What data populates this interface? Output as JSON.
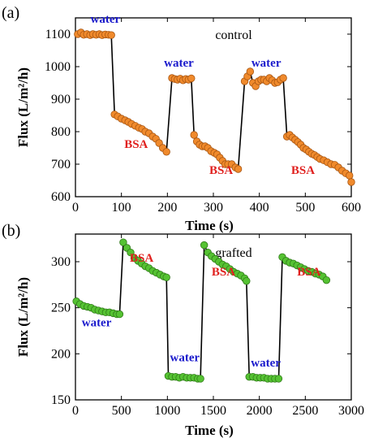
{
  "colors": {
    "water_label": "#1a1acc",
    "bsa_label": "#e0201e",
    "control_marker": "#f08a2c",
    "control_marker_edge": "#a85612",
    "grafted_marker": "#55c232",
    "grafted_marker_edge": "#2f7a18",
    "line": "#000000"
  },
  "chart_data": [
    {
      "type": "line",
      "panel_label": "(a)",
      "title": "control",
      "xlabel": "Time  (s)",
      "ylabel": "Flux (L/m²/h)",
      "xlim": [
        0,
        600
      ],
      "ylim": [
        600,
        1150
      ],
      "xticks": [
        0,
        100,
        200,
        300,
        400,
        500,
        600
      ],
      "yticks": [
        600,
        700,
        800,
        900,
        1000,
        1100
      ],
      "annotations": [
        {
          "text": "water",
          "x": 65,
          "y": 1135,
          "color": "water_label"
        },
        {
          "text": "BSA",
          "x": 132,
          "y": 750,
          "color": "bsa_label"
        },
        {
          "text": "water",
          "x": 225,
          "y": 1000,
          "color": "water_label"
        },
        {
          "text": "BSA",
          "x": 317,
          "y": 670,
          "color": "bsa_label"
        },
        {
          "text": "water",
          "x": 415,
          "y": 1000,
          "color": "water_label"
        },
        {
          "text": "BSA",
          "x": 495,
          "y": 670,
          "color": "bsa_label"
        }
      ],
      "segments": [
        {
          "kind": "water",
          "x": [
            5,
            12,
            18,
            25,
            32,
            38,
            45,
            52,
            58,
            65,
            72,
            78
          ],
          "y": [
            1100,
            1105,
            1098,
            1100,
            1097,
            1100,
            1098,
            1100,
            1097,
            1099,
            1098,
            1097
          ]
        },
        {
          "kind": "BSA",
          "x": [
            85,
            92,
            100,
            108,
            115,
            122,
            130,
            138,
            145,
            152,
            160,
            168,
            175,
            182,
            190,
            198
          ],
          "y": [
            853,
            847,
            840,
            835,
            830,
            824,
            818,
            812,
            808,
            800,
            795,
            785,
            778,
            765,
            750,
            738
          ]
        },
        {
          "kind": "water",
          "x": [
            210,
            216,
            222,
            228,
            234,
            240,
            246,
            252
          ],
          "y": [
            965,
            962,
            960,
            963,
            958,
            962,
            960,
            964
          ]
        },
        {
          "kind": "BSA",
          "x": [
            258,
            264,
            270,
            276,
            282,
            288,
            295,
            302,
            308,
            314,
            320,
            326,
            332,
            340,
            348,
            354
          ],
          "y": [
            790,
            770,
            760,
            755,
            755,
            750,
            740,
            735,
            730,
            720,
            710,
            700,
            700,
            700,
            690,
            685
          ]
        },
        {
          "kind": "water",
          "x": [
            368,
            374,
            380,
            386,
            392,
            398,
            404,
            410,
            416,
            422,
            428,
            434,
            440,
            446,
            452
          ],
          "y": [
            955,
            970,
            985,
            950,
            940,
            955,
            960,
            960,
            955,
            965,
            958,
            950,
            952,
            960,
            965
          ]
        },
        {
          "kind": "BSA",
          "x": [
            460,
            466,
            472,
            478,
            484,
            490,
            496,
            502,
            508,
            514,
            520,
            526,
            532,
            540,
            548,
            556,
            564,
            572,
            580,
            588,
            596
          ],
          "y": [
            785,
            790,
            782,
            775,
            768,
            760,
            750,
            745,
            738,
            732,
            728,
            722,
            716,
            712,
            706,
            700,
            698,
            690,
            680,
            672,
            665
          ]
        }
      ],
      "final_point": {
        "x": 600,
        "y": 645
      }
    },
    {
      "type": "line",
      "panel_label": "(b)",
      "title": "grafted",
      "xlabel": "Time (s)",
      "ylabel": "Flux (L/m²/h)",
      "xlim": [
        0,
        3000
      ],
      "ylim": [
        150,
        330
      ],
      "xticks": [
        0,
        500,
        1000,
        1500,
        2000,
        2500,
        3000
      ],
      "yticks": [
        150,
        200,
        250,
        300
      ],
      "annotations": [
        {
          "text": "water",
          "x": 230,
          "y": 230,
          "color": "water_label"
        },
        {
          "text": "BSA",
          "x": 720,
          "y": 300,
          "color": "bsa_label"
        },
        {
          "text": "water",
          "x": 1190,
          "y": 192,
          "color": "water_label"
        },
        {
          "text": "BSA",
          "x": 1610,
          "y": 285,
          "color": "bsa_label"
        },
        {
          "text": "water",
          "x": 2070,
          "y": 186,
          "color": "water_label"
        },
        {
          "text": "BSA",
          "x": 2540,
          "y": 285,
          "color": "bsa_label"
        }
      ],
      "segments": [
        {
          "kind": "water",
          "x": [
            10,
            50,
            90,
            130,
            170,
            210,
            250,
            290,
            330,
            370,
            410,
            450,
            480
          ],
          "y": [
            257,
            254,
            252,
            251,
            250,
            248,
            247,
            246,
            245,
            245,
            244,
            243,
            243
          ]
        },
        {
          "kind": "BSA",
          "x": [
            520,
            560,
            600,
            640,
            680,
            720,
            760,
            800,
            840,
            880,
            920,
            960,
            990
          ],
          "y": [
            321,
            315,
            310,
            304,
            301,
            298,
            295,
            293,
            290,
            288,
            286,
            284,
            283
          ]
        },
        {
          "kind": "water",
          "x": [
            1010,
            1050,
            1090,
            1130,
            1170,
            1210,
            1250,
            1290,
            1330,
            1360
          ],
          "y": [
            176,
            175,
            175,
            174,
            175,
            174,
            174,
            174,
            173,
            173
          ]
        },
        {
          "kind": "BSA",
          "x": [
            1400,
            1440,
            1480,
            1520,
            1560,
            1600,
            1640,
            1680,
            1720,
            1760,
            1800,
            1840,
            1860
          ],
          "y": [
            318,
            310,
            306,
            303,
            300,
            297,
            295,
            292,
            289,
            287,
            285,
            282,
            279
          ]
        },
        {
          "kind": "water",
          "x": [
            1890,
            1930,
            1970,
            2010,
            2050,
            2090,
            2130,
            2170,
            2210
          ],
          "y": [
            175,
            175,
            174,
            174,
            174,
            173,
            173,
            173,
            173
          ]
        },
        {
          "kind": "BSA",
          "x": [
            2250,
            2290,
            2330,
            2370,
            2410,
            2450,
            2490,
            2530,
            2570,
            2610,
            2650,
            2690,
            2730
          ],
          "y": [
            305,
            301,
            299,
            298,
            296,
            294,
            292,
            290,
            289,
            287,
            286,
            284,
            280
          ]
        }
      ]
    }
  ]
}
